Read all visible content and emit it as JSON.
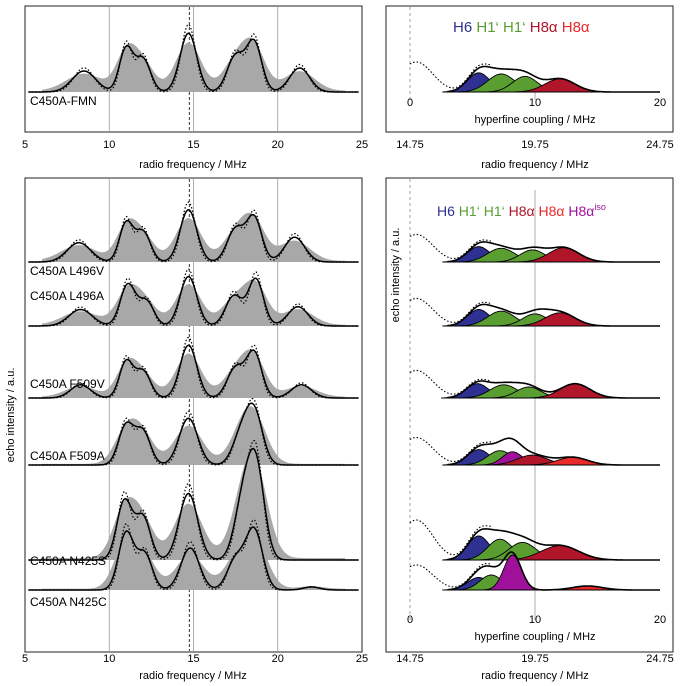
{
  "chart_data": {
    "type": "line",
    "subtype": "ENDOR spectra with Gaussian hyperfine decomposition",
    "axes": {
      "rf": {
        "label": "radio frequency / MHz",
        "range": [
          5,
          25
        ],
        "ticks": [
          "5",
          "10",
          "15",
          "20",
          "25"
        ],
        "marker_line": 14.75
      },
      "rf2": {
        "label": "radio frequency / MHz",
        "ticks": [
          "14.75",
          "19.75",
          "24.75"
        ]
      },
      "hfc": {
        "label": "hyperfine coupling / MHz",
        "range": [
          0,
          20
        ],
        "ticks": [
          "0",
          "10",
          "20"
        ]
      },
      "y_label": "echo intensity / a.u."
    },
    "component_colors": {
      "H6": "#2e3192",
      "H1p": "#5a9e32",
      "H8a_a": "#b0152a",
      "H8a_b": "#e82a2a",
      "H8a_iso": "#a0119b"
    },
    "legend_top": [
      {
        "label": "H6",
        "color": "#2e3192"
      },
      {
        "label": "H1‘",
        "color": "#5a9e32"
      },
      {
        "label": "H1‘",
        "color": "#5a9e32"
      },
      {
        "label": "H8α",
        "color": "#b0152a"
      },
      {
        "label": "H8α",
        "color": "#e82a2a"
      }
    ],
    "legend_bottom": [
      {
        "label": "H6",
        "color": "#2e3192"
      },
      {
        "label": "H1‘",
        "color": "#5a9e32"
      },
      {
        "label": "H1‘",
        "color": "#5a9e32"
      },
      {
        "label": "H8α",
        "color": "#b0152a"
      },
      {
        "label": "H8α",
        "color": "#e82a2a"
      },
      {
        "label": "H8α",
        "sup": "iso",
        "color": "#a0119b"
      }
    ],
    "series": [
      {
        "name": "C450A-FMN",
        "rf_peaks": [
          [
            8.5,
            0.35,
            0.7
          ],
          [
            11.0,
            0.72,
            0.4
          ],
          [
            12.0,
            0.55,
            0.45
          ],
          [
            14.7,
            0.98,
            0.5
          ],
          [
            17.5,
            0.6,
            0.5
          ],
          [
            18.6,
            0.82,
            0.45
          ],
          [
            21.3,
            0.4,
            0.6
          ]
        ],
        "comps": [
          [
            5.5,
            0.32,
            0.9
          ],
          [
            7.3,
            0.3,
            1.1
          ],
          [
            9.2,
            0.26,
            1.0
          ],
          [
            12.0,
            0.22,
            1.2
          ]
        ]
      },
      {
        "name": "C450A L496V",
        "rf_peaks": [
          [
            8.2,
            0.35,
            0.7
          ],
          [
            11.0,
            0.7,
            0.4
          ],
          [
            12.0,
            0.55,
            0.45
          ],
          [
            14.7,
            0.95,
            0.5
          ],
          [
            17.5,
            0.6,
            0.5
          ],
          [
            18.6,
            0.8,
            0.45
          ],
          [
            21.0,
            0.45,
            0.6
          ]
        ],
        "comps": [
          [
            5.5,
            0.28,
            0.9
          ],
          [
            7.3,
            0.25,
            1.1
          ],
          [
            9.8,
            0.22,
            1.0
          ],
          [
            12.3,
            0.26,
            1.2
          ]
        ]
      },
      {
        "name": "C450A L496A",
        "rf_peaks": [
          [
            8.3,
            0.3,
            0.7
          ],
          [
            11.1,
            0.75,
            0.45
          ],
          [
            12.2,
            0.45,
            0.45
          ],
          [
            14.7,
            0.9,
            0.5
          ],
          [
            17.4,
            0.55,
            0.5
          ],
          [
            18.7,
            0.85,
            0.45
          ],
          [
            21.2,
            0.35,
            0.6
          ]
        ],
        "comps": [
          [
            5.5,
            0.3,
            0.9
          ],
          [
            7.3,
            0.27,
            1.1
          ],
          [
            10.0,
            0.22,
            1.0
          ],
          [
            12.0,
            0.24,
            1.2
          ]
        ]
      },
      {
        "name": "C450A F509V",
        "rf_peaks": [
          [
            8.3,
            0.22,
            0.6
          ],
          [
            11.0,
            0.6,
            0.4
          ],
          [
            12.0,
            0.45,
            0.45
          ],
          [
            14.7,
            0.88,
            0.5
          ],
          [
            17.5,
            0.5,
            0.5
          ],
          [
            18.6,
            0.75,
            0.45
          ],
          [
            21.4,
            0.22,
            0.6
          ]
        ],
        "comps": [
          [
            5.4,
            0.26,
            0.9
          ],
          [
            7.5,
            0.24,
            1.1
          ],
          [
            9.5,
            0.2,
            1.0
          ],
          [
            13.2,
            0.26,
            1.2
          ]
        ]
      },
      {
        "name": "C450A F509A",
        "rf_peaks": [
          [
            11.0,
            0.72,
            0.45
          ],
          [
            12.0,
            0.6,
            0.45
          ],
          [
            14.7,
            0.85,
            0.55
          ],
          [
            17.8,
            0.5,
            0.5
          ],
          [
            18.6,
            0.95,
            0.5
          ]
        ],
        "comps": [
          [
            5.5,
            0.28,
            0.9
          ],
          [
            7.2,
            0.26,
            1.0
          ],
          [
            8.2,
            0.24,
            0.8
          ],
          [
            9.8,
            0.18,
            1.2
          ],
          [
            13.0,
            0.14,
            1.2
          ]
        ]
      },
      {
        "name": "C450A N425S",
        "rf_peaks": [
          [
            10.9,
            0.62,
            0.45
          ],
          [
            12.0,
            0.45,
            0.45
          ],
          [
            14.7,
            0.7,
            0.55
          ],
          [
            17.9,
            0.55,
            0.5
          ],
          [
            18.7,
            0.98,
            0.5
          ]
        ],
        "comps": [
          [
            5.5,
            0.3,
            0.9
          ],
          [
            7.2,
            0.26,
            1.0
          ],
          [
            9.0,
            0.22,
            1.1
          ],
          [
            12.0,
            0.18,
            1.5
          ]
        ]
      },
      {
        "name": "C450A N425C",
        "rf_peaks": [
          [
            11.0,
            0.95,
            0.45
          ],
          [
            12.1,
            0.6,
            0.45
          ],
          [
            14.8,
            0.7,
            0.55
          ],
          [
            17.5,
            0.5,
            0.5
          ],
          [
            18.6,
            1.0,
            0.5
          ],
          [
            22.0,
            0.05,
            0.5
          ]
        ],
        "comps": [
          [
            5.5,
            0.25,
            0.9
          ],
          [
            6.5,
            0.3,
            0.9
          ],
          [
            8.2,
            0.7,
            0.7
          ],
          [
            14.2,
            0.08,
            1.2
          ]
        ]
      }
    ]
  }
}
